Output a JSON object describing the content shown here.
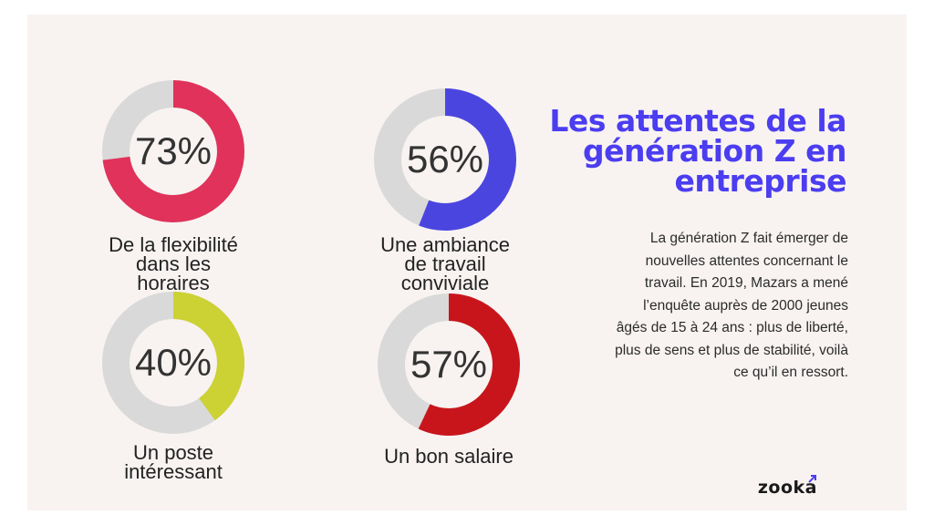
{
  "chart_data": {
    "type": "pie",
    "title": "Les attentes de la génération Z en entreprise",
    "series": [
      {
        "name": "De la flexibilité dans les horaires",
        "values": [
          73
        ],
        "display": "73%",
        "color": "#e0325a"
      },
      {
        "name": "Une ambiance de travail conviviale",
        "values": [
          56
        ],
        "display": "56%",
        "color": "#4b45e0"
      },
      {
        "name": "Un poste intéressant",
        "values": [
          40
        ],
        "display": "40%",
        "color": "#ccd134"
      },
      {
        "name": "Un bon salaire",
        "values": [
          57
        ],
        "display": "57%",
        "color": "#c8151c"
      }
    ],
    "track_color": "#d9d9d9",
    "unit": "%"
  },
  "header": {
    "title": "Les attentes de la génération Z en entreprise",
    "title_lines": [
      "Les attentes de la",
      "génération Z en",
      "entreprise"
    ]
  },
  "body": {
    "paragraph_lines": [
      "La génération Z fait émerger de",
      "nouvelles attentes concernant le",
      "travail. En 2019, Mazars a mené",
      "l’enquête auprès de 2000 jeunes",
      "âgés de 15 à 24 ans : plus de liberté,",
      "plus de sens et plus de stabilité, voilà",
      "ce qu’il en ressort."
    ]
  },
  "labels": {
    "d1": [
      "De la flexibilité",
      "dans les",
      "horaires"
    ],
    "d2": [
      "Une ambiance",
      "de travail",
      "conviviale"
    ],
    "d3": [
      "Un poste",
      "intéressant"
    ],
    "d4": [
      "Un bon salaire"
    ]
  },
  "brand": {
    "logo_text": "zooka",
    "accent": "#4b3df0"
  }
}
